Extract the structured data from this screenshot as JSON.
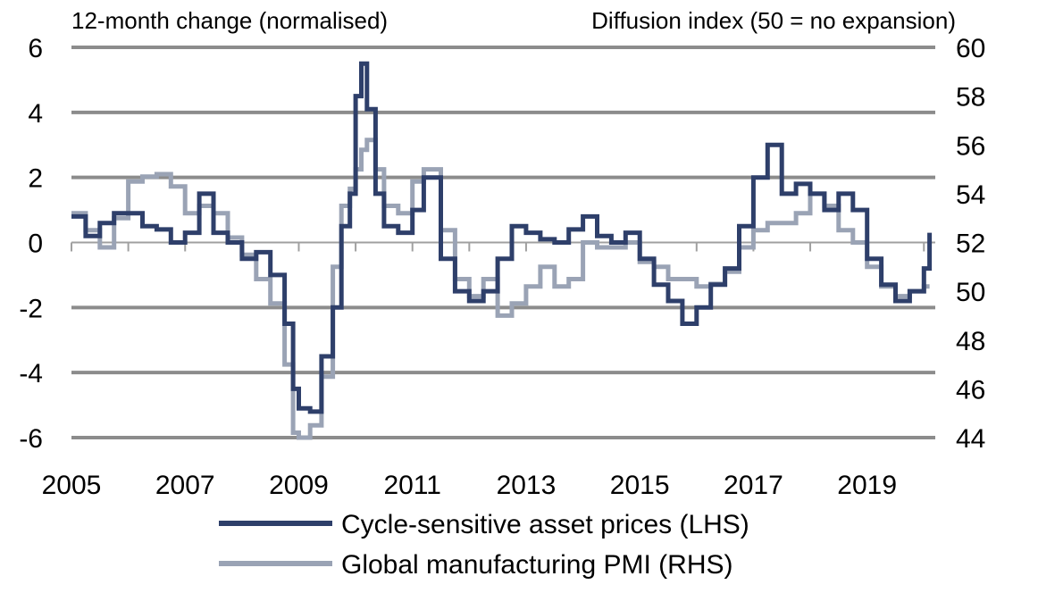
{
  "chart_data": {
    "type": "line",
    "left_axis_title": "12-month change (normalised)",
    "right_axis_title": "Diffusion index (50 = no expansion)",
    "left_ylim": [
      -6,
      6
    ],
    "right_ylim": [
      44,
      60
    ],
    "left_ticks": [
      "6",
      "4",
      "2",
      "0",
      "-2",
      "-4",
      "-6"
    ],
    "right_ticks": [
      "60",
      "58",
      "56",
      "54",
      "52",
      "50",
      "48",
      "46",
      "44"
    ],
    "x_ticks": [
      "2005",
      "2007",
      "2009",
      "2011",
      "2013",
      "2015",
      "2017",
      "2019"
    ],
    "x_tick_values": [
      2005,
      2007,
      2009,
      2011,
      2013,
      2015,
      2017,
      2019
    ],
    "xlim": [
      2005,
      2020.2
    ],
    "grid": true,
    "legend_position": "bottom",
    "series": [
      {
        "name": "Cycle-sensitive asset prices (LHS)",
        "axis": "left",
        "color": "#2e3f6a",
        "x": [
          2005.0,
          2005.25,
          2005.5,
          2005.75,
          2006.0,
          2006.25,
          2006.5,
          2006.75,
          2007.0,
          2007.25,
          2007.5,
          2007.75,
          2008.0,
          2008.25,
          2008.5,
          2008.75,
          2008.9,
          2009.0,
          2009.2,
          2009.4,
          2009.6,
          2009.75,
          2009.9,
          2010.0,
          2010.1,
          2010.2,
          2010.35,
          2010.5,
          2010.75,
          2011.0,
          2011.2,
          2011.5,
          2011.75,
          2012.0,
          2012.25,
          2012.5,
          2012.75,
          2013.0,
          2013.25,
          2013.5,
          2013.75,
          2014.0,
          2014.25,
          2014.5,
          2014.75,
          2015.0,
          2015.25,
          2015.5,
          2015.75,
          2016.0,
          2016.25,
          2016.5,
          2016.75,
          2017.0,
          2017.25,
          2017.5,
          2017.75,
          2018.0,
          2018.25,
          2018.5,
          2018.75,
          2019.0,
          2019.25,
          2019.5,
          2019.75,
          2020.0,
          2020.1
        ],
        "values": [
          0.8,
          0.2,
          0.6,
          0.9,
          0.9,
          0.5,
          0.4,
          0.0,
          0.3,
          1.5,
          0.3,
          0.0,
          -0.5,
          -0.3,
          -1.0,
          -2.5,
          -4.5,
          -5.1,
          -5.2,
          -3.5,
          -2.0,
          0.5,
          1.5,
          4.5,
          5.5,
          4.1,
          1.5,
          0.5,
          0.3,
          1.0,
          2.0,
          -0.5,
          -1.5,
          -1.8,
          -1.5,
          -0.5,
          0.5,
          0.3,
          0.1,
          0.0,
          0.4,
          0.8,
          0.2,
          0.0,
          0.3,
          -0.5,
          -1.3,
          -1.8,
          -2.5,
          -2.0,
          -1.3,
          -0.8,
          0.5,
          2.0,
          3.0,
          1.5,
          1.8,
          1.5,
          1.0,
          1.5,
          1.0,
          -0.5,
          -1.3,
          -1.8,
          -1.5,
          -0.8,
          0.3
        ]
      },
      {
        "name": "Global manufacturing PMI (RHS)",
        "axis": "right",
        "color": "#9aa3b5",
        "x": [
          2005.0,
          2005.25,
          2005.5,
          2005.75,
          2006.0,
          2006.25,
          2006.5,
          2006.75,
          2007.0,
          2007.25,
          2007.5,
          2007.75,
          2008.0,
          2008.25,
          2008.5,
          2008.75,
          2008.9,
          2009.0,
          2009.2,
          2009.4,
          2009.6,
          2009.75,
          2009.9,
          2010.0,
          2010.1,
          2010.2,
          2010.35,
          2010.5,
          2010.75,
          2011.0,
          2011.2,
          2011.5,
          2011.75,
          2012.0,
          2012.25,
          2012.5,
          2012.75,
          2013.0,
          2013.25,
          2013.5,
          2013.75,
          2014.0,
          2014.25,
          2014.5,
          2014.75,
          2015.0,
          2015.25,
          2015.5,
          2015.75,
          2016.0,
          2016.25,
          2016.5,
          2016.75,
          2017.0,
          2017.25,
          2017.5,
          2017.75,
          2018.0,
          2018.25,
          2018.5,
          2018.75,
          2019.0,
          2019.25,
          2019.5,
          2019.75,
          2020.0,
          2020.1
        ],
        "values": [
          53.2,
          52.5,
          51.8,
          53.0,
          54.5,
          54.7,
          54.8,
          54.3,
          53.2,
          53.5,
          53.2,
          52.2,
          51.5,
          50.5,
          49.5,
          47.0,
          44.2,
          44.0,
          44.5,
          46.5,
          51.0,
          53.5,
          54.2,
          55.0,
          55.8,
          56.2,
          55.0,
          53.5,
          53.2,
          54.5,
          55.0,
          52.5,
          50.5,
          49.8,
          50.5,
          49.0,
          49.5,
          50.2,
          51.0,
          50.2,
          50.5,
          52.0,
          51.8,
          51.8,
          52.0,
          51.2,
          51.0,
          50.5,
          50.5,
          50.2,
          50.3,
          50.8,
          51.8,
          52.5,
          52.8,
          52.8,
          53.2,
          54.0,
          53.5,
          52.5,
          52.0,
          51.0,
          50.2,
          49.8,
          50.0,
          50.2,
          50.2
        ]
      }
    ]
  }
}
